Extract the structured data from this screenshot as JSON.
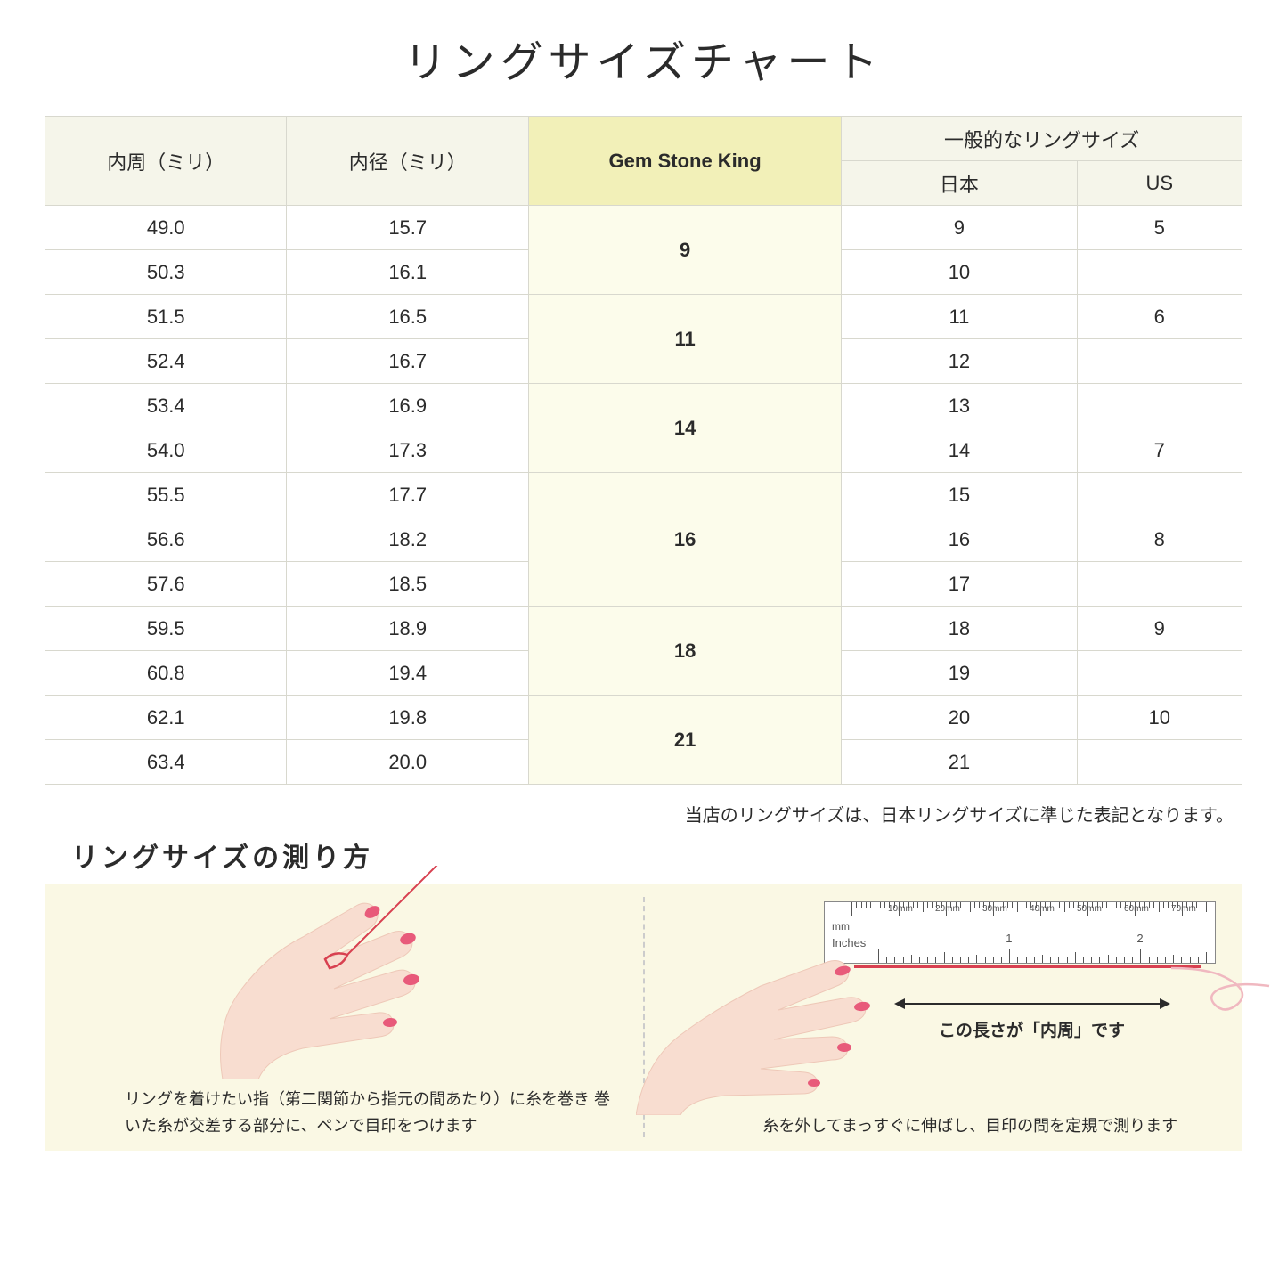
{
  "title": "リングサイズチャート",
  "table": {
    "headers": {
      "circumference": "内周（ミリ）",
      "diameter": "内径（ミリ）",
      "gsk": "Gem Stone King",
      "general_top": "一般的なリングサイズ",
      "japan": "日本",
      "us": "US"
    },
    "header_bg": "#f5f5ea",
    "highlight_bg": "#f2f0b8",
    "gsk_cell_bg": "#fcfceb",
    "border_color": "#d8d8ce",
    "groups": [
      {
        "gsk": "9",
        "rows": [
          {
            "circ": "49.0",
            "diam": "15.7",
            "jp": "9",
            "us": "5"
          },
          {
            "circ": "50.3",
            "diam": "16.1",
            "jp": "10",
            "us": ""
          }
        ]
      },
      {
        "gsk": "11",
        "rows": [
          {
            "circ": "51.5",
            "diam": "16.5",
            "jp": "11",
            "us": "6"
          },
          {
            "circ": "52.4",
            "diam": "16.7",
            "jp": "12",
            "us": ""
          }
        ]
      },
      {
        "gsk": "14",
        "rows": [
          {
            "circ": "53.4",
            "diam": "16.9",
            "jp": "13",
            "us": ""
          },
          {
            "circ": "54.0",
            "diam": "17.3",
            "jp": "14",
            "us": "7"
          }
        ]
      },
      {
        "gsk": "16",
        "rows": [
          {
            "circ": "55.5",
            "diam": "17.7",
            "jp": "15",
            "us": ""
          },
          {
            "circ": "56.6",
            "diam": "18.2",
            "jp": "16",
            "us": "8"
          },
          {
            "circ": "57.6",
            "diam": "18.5",
            "jp": "17",
            "us": ""
          }
        ]
      },
      {
        "gsk": "18",
        "rows": [
          {
            "circ": "59.5",
            "diam": "18.9",
            "jp": "18",
            "us": "9"
          },
          {
            "circ": "60.8",
            "diam": "19.4",
            "jp": "19",
            "us": ""
          }
        ]
      },
      {
        "gsk": "21",
        "rows": [
          {
            "circ": "62.1",
            "diam": "19.8",
            "jp": "20",
            "us": "10"
          },
          {
            "circ": "63.4",
            "diam": "20.0",
            "jp": "21",
            "us": ""
          }
        ]
      }
    ]
  },
  "note": "当店のリングサイズは、日本リングサイズに準じた表記となります。",
  "how_title": "リングサイズの測り方",
  "instructions": {
    "bg": "#faf8e4",
    "left_caption": "リングを着けたい指（第二関節から指元の間あたり）に糸を巻き\n巻いた糸が交差する部分に、ペンで目印をつけます",
    "right_caption": "糸を外してまっすぐに伸ばし、目印の間を定規で測ります",
    "arrow_label": "この長さが「内周」です",
    "skin_color": "#f8ddd0",
    "skin_shadow": "#eec8b8",
    "nail_color": "#e85a7a",
    "thread_color": "#d84050",
    "ruler": {
      "mm_label": "mm",
      "in_label": "Inches",
      "mm_marks": [
        "10mm",
        "20mm",
        "30mm",
        "40mm",
        "50mm",
        "60mm",
        "70mm"
      ],
      "in_marks": [
        "1",
        "2"
      ]
    }
  }
}
